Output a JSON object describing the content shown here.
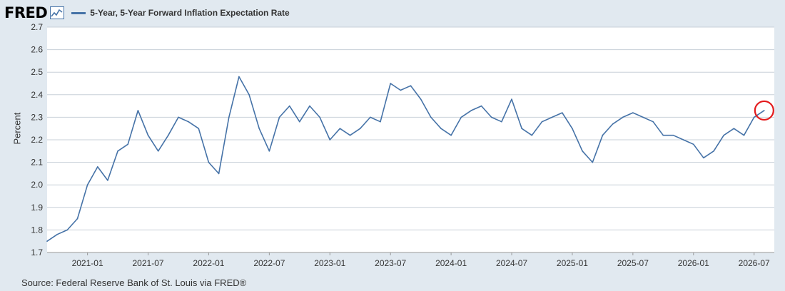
{
  "header": {
    "logo_text": "FRED",
    "logo_icon": "line-graph-icon",
    "series_title": "5-Year, 5-Year Forward Inflation Expectation Rate"
  },
  "source_text": "Source: Federal Reserve Bank of St. Louis via FRED®",
  "colors": {
    "background": "#e1e9f0",
    "plot_background": "#ffffff",
    "line": "#4572a7",
    "gridline": "#c8d0d8",
    "highlight_circle": "#e31a1c"
  },
  "chart_data": {
    "type": "line",
    "title": "",
    "xlabel": "",
    "ylabel": "Percent",
    "ylim": [
      1.7,
      2.7
    ],
    "yticks": [
      "1.7",
      "1.8",
      "1.9",
      "2.0",
      "2.1",
      "2.2",
      "2.3",
      "2.4",
      "2.5",
      "2.6",
      "2.7"
    ],
    "xticks": [
      "2021-01",
      "2021-07",
      "2022-01",
      "2022-07",
      "2023-01",
      "2023-07",
      "2024-01",
      "2024-07",
      "2025-01",
      "2025-07",
      "2026-01",
      "2026-07"
    ],
    "x_range": [
      "2020-09",
      "2026-09"
    ],
    "grid": true,
    "legend": "top-left",
    "annotation": "red circle around latest value",
    "series": [
      {
        "name": "5-Year, 5-Year Forward Inflation Expectation Rate",
        "x": [
          "2020-09",
          "2020-10",
          "2020-11",
          "2020-12",
          "2021-01",
          "2021-02",
          "2021-03",
          "2021-04",
          "2021-05",
          "2021-06",
          "2021-07",
          "2021-08",
          "2021-09",
          "2021-10",
          "2021-11",
          "2021-12",
          "2022-01",
          "2022-02",
          "2022-03",
          "2022-04",
          "2022-05",
          "2022-06",
          "2022-07",
          "2022-08",
          "2022-09",
          "2022-10",
          "2022-11",
          "2022-12",
          "2023-01",
          "2023-02",
          "2023-03",
          "2023-04",
          "2023-05",
          "2023-06",
          "2023-07",
          "2023-08",
          "2023-09",
          "2023-10",
          "2023-11",
          "2023-12",
          "2024-01",
          "2024-02",
          "2024-03",
          "2024-04",
          "2024-05",
          "2024-06",
          "2024-07",
          "2024-08",
          "2024-09",
          "2024-10",
          "2024-11",
          "2024-12",
          "2025-01",
          "2025-02",
          "2025-03",
          "2025-04",
          "2025-05",
          "2025-06",
          "2025-07",
          "2025-08",
          "2025-09",
          "2025-10",
          "2025-11",
          "2025-12",
          "2026-01",
          "2026-02",
          "2026-03",
          "2026-04",
          "2026-05",
          "2026-06",
          "2026-07",
          "2026-08"
        ],
        "values": [
          1.75,
          1.78,
          1.8,
          1.85,
          2.0,
          2.08,
          2.02,
          2.15,
          2.18,
          2.33,
          2.22,
          2.15,
          2.22,
          2.3,
          2.28,
          2.25,
          2.1,
          2.05,
          2.3,
          2.48,
          2.4,
          2.25,
          2.15,
          2.3,
          2.35,
          2.28,
          2.35,
          2.3,
          2.2,
          2.25,
          2.22,
          2.25,
          2.3,
          2.28,
          2.45,
          2.42,
          2.44,
          2.38,
          2.3,
          2.25,
          2.22,
          2.3,
          2.33,
          2.35,
          2.3,
          2.28,
          2.38,
          2.25,
          2.22,
          2.28,
          2.3,
          2.32,
          2.25,
          2.15,
          2.1,
          2.22,
          2.27,
          2.3,
          2.32,
          2.3,
          2.28,
          2.22,
          2.22,
          2.2,
          2.18,
          2.12,
          2.15,
          2.22,
          2.25,
          2.22,
          2.3,
          2.33
        ]
      }
    ]
  }
}
